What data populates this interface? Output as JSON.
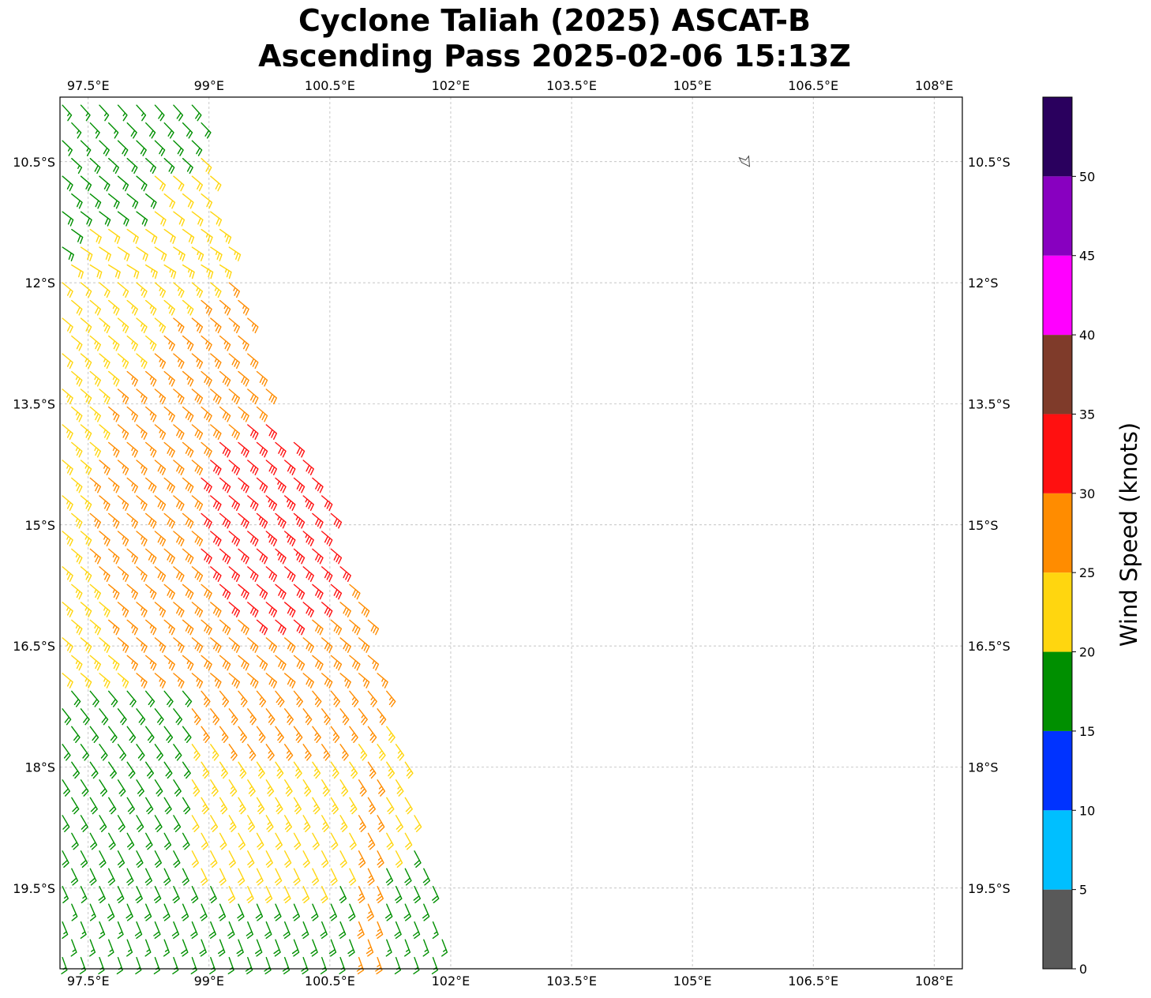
{
  "title": {
    "line1": "Cyclone Taliah (2025) ASCAT-B",
    "line2": "Ascending Pass 2025-02-06 15:13Z"
  },
  "map": {
    "lon_range": [
      97.15,
      108.35
    ],
    "lat_range": [
      -20.5,
      -9.7
    ],
    "gridlines": true,
    "lon_ticks": [
      97.5,
      99,
      100.5,
      102,
      103.5,
      105,
      106.5,
      108
    ],
    "lon_labels": [
      "97.5°E",
      "99°E",
      "100.5°E",
      "102°E",
      "103.5°E",
      "105°E",
      "106.5°E",
      "108°E"
    ],
    "lat_ticks": [
      -10.5,
      -12,
      -13.5,
      -15,
      -16.5,
      -18,
      -19.5
    ],
    "lat_labels": [
      "10.5°S",
      "12°S",
      "13.5°S",
      "15°S",
      "16.5°S",
      "18°S",
      "19.5°S"
    ],
    "island_icon": "small-island-outline",
    "island_lon": 105.65,
    "island_lat": -10.5,
    "swath": {
      "description_type": "wind-barbs",
      "west_edge_lon": 97.15,
      "east_edge_points": [
        [
          -9.7,
          98.9
        ],
        [
          -10.5,
          99.0
        ],
        [
          -12.0,
          99.4
        ],
        [
          -13.5,
          99.8
        ],
        [
          -15.0,
          100.6
        ],
        [
          -16.5,
          101.1
        ],
        [
          -18.0,
          101.5
        ],
        [
          -19.5,
          101.8
        ],
        [
          -20.5,
          102.0
        ]
      ],
      "dominant_direction": "southeasterly",
      "max_wind_knots_region": {
        "lat": [
          -14.0,
          -15.8
        ],
        "lon": [
          99.2,
          100.5
        ],
        "speed_range": "30-35"
      }
    }
  },
  "colorbar": {
    "label": "Wind Speed (knots)",
    "bounds": [
      0,
      5,
      10,
      15,
      20,
      25,
      30,
      35,
      40,
      45,
      50,
      55
    ],
    "tick_values": [
      0,
      5,
      10,
      15,
      20,
      25,
      30,
      35,
      40,
      45,
      50
    ],
    "tick_labels": [
      "0",
      "5",
      "10",
      "15",
      "20",
      "25",
      "30",
      "35",
      "40",
      "45",
      "50"
    ],
    "colors": [
      "#595959",
      "#00bfff",
      "#0033ff",
      "#008f00",
      "#ffd60f",
      "#ff8c00",
      "#ff1010",
      "#7f3b2a",
      "#ff00ff",
      "#8800c0",
      "#2a005e"
    ]
  }
}
